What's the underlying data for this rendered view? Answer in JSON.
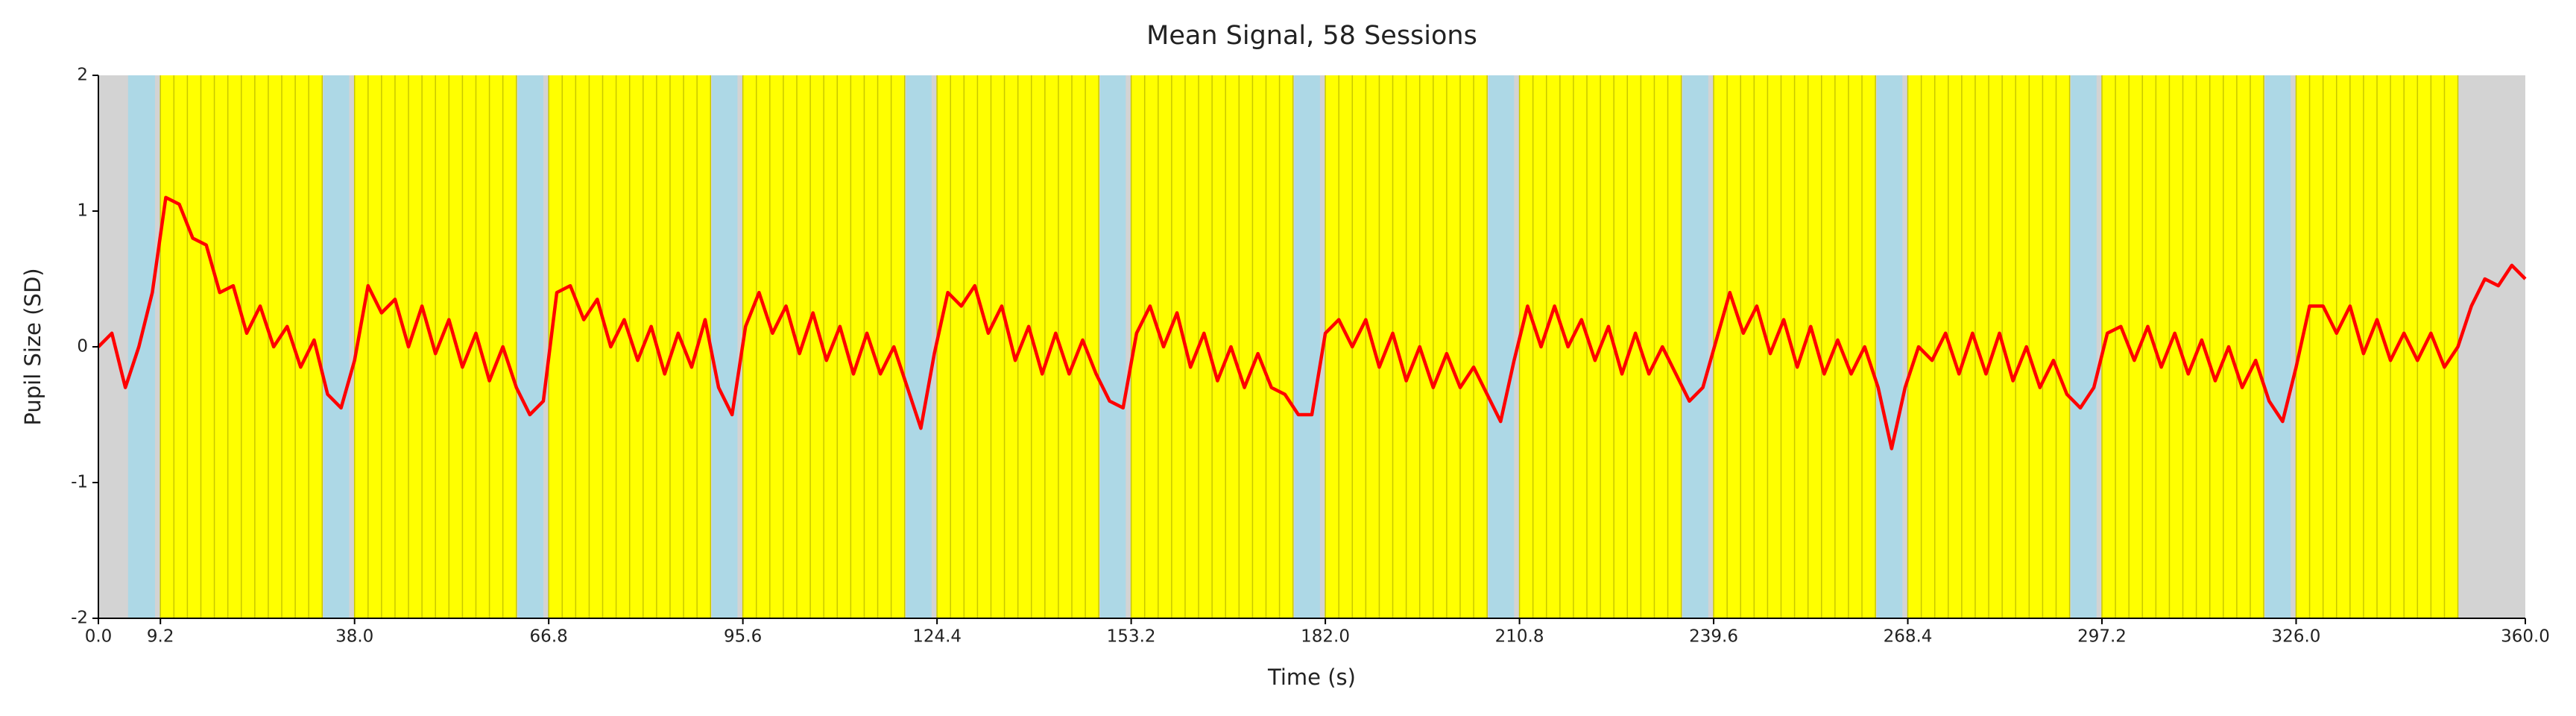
{
  "chart_data": {
    "type": "line",
    "title": "Mean Signal, 58 Sessions",
    "xlabel": "Time (s)",
    "ylabel": "Pupil Size (SD)",
    "xlim": [
      0,
      360
    ],
    "ylim": [
      -2,
      2
    ],
    "xticks": [
      {
        "value": 0,
        "label": "0.0"
      },
      {
        "value": 9.2,
        "label": "9.2"
      },
      {
        "value": 38,
        "label": "38.0"
      },
      {
        "value": 66.8,
        "label": "66.8"
      },
      {
        "value": 95.6,
        "label": "95.6"
      },
      {
        "value": 124.4,
        "label": "124.4"
      },
      {
        "value": 153.2,
        "label": "153.2"
      },
      {
        "value": 182,
        "label": "182.0"
      },
      {
        "value": 210.8,
        "label": "210.8"
      },
      {
        "value": 239.6,
        "label": "239.6"
      },
      {
        "value": 268.4,
        "label": "268.4"
      },
      {
        "value": 297.2,
        "label": "297.2"
      },
      {
        "value": 326,
        "label": "326.0"
      },
      {
        "value": 360,
        "label": "360.0"
      }
    ],
    "yticks": [
      -2,
      -1,
      0,
      1,
      2
    ],
    "background_color": "#d3d3d3",
    "regions": [
      {
        "color": "#add8e6",
        "spans": [
          [
            4.4,
            8.4
          ],
          [
            33.4,
            37.2
          ],
          [
            62.2,
            66.0
          ],
          [
            91.0,
            94.8
          ],
          [
            119.8,
            123.6
          ],
          [
            148.6,
            152.4
          ],
          [
            177.4,
            181.2
          ],
          [
            206.2,
            210.0
          ],
          [
            235.0,
            238.8
          ],
          [
            263.8,
            267.6
          ],
          [
            292.6,
            296.4
          ],
          [
            321.4,
            325.2
          ]
        ]
      },
      {
        "color": "#ffff00",
        "stripe_color": "#c8c800",
        "stripe_every": 2,
        "spans": [
          [
            9.2,
            33.2
          ],
          [
            38.0,
            62.0
          ],
          [
            66.8,
            90.8
          ],
          [
            95.6,
            119.6
          ],
          [
            124.4,
            148.4
          ],
          [
            153.2,
            177.2
          ],
          [
            182.0,
            206.0
          ],
          [
            210.8,
            234.8
          ],
          [
            239.6,
            263.6
          ],
          [
            268.4,
            292.4
          ],
          [
            297.2,
            321.2
          ],
          [
            326.0,
            350.0
          ]
        ]
      }
    ],
    "x": [
      0,
      2,
      4,
      6,
      8,
      10,
      12,
      14,
      16,
      18,
      20,
      22,
      24,
      26,
      28,
      30,
      32,
      34,
      36,
      38,
      40,
      42,
      44,
      46,
      48,
      50,
      52,
      54,
      56,
      58,
      60,
      62,
      64,
      66,
      68,
      70,
      72,
      74,
      76,
      78,
      80,
      82,
      84,
      86,
      88,
      90,
      92,
      94,
      96,
      98,
      100,
      102,
      104,
      106,
      108,
      110,
      112,
      114,
      116,
      118,
      120,
      122,
      124,
      126,
      128,
      130,
      132,
      134,
      136,
      138,
      140,
      142,
      144,
      146,
      148,
      150,
      152,
      154,
      156,
      158,
      160,
      162,
      164,
      166,
      168,
      170,
      172,
      174,
      176,
      178,
      180,
      182,
      184,
      186,
      188,
      190,
      192,
      194,
      196,
      198,
      200,
      202,
      204,
      206,
      208,
      210,
      212,
      214,
      216,
      218,
      220,
      222,
      224,
      226,
      228,
      230,
      232,
      234,
      236,
      238,
      240,
      242,
      244,
      246,
      248,
      250,
      252,
      254,
      256,
      258,
      260,
      262,
      264,
      266,
      268,
      270,
      272,
      274,
      276,
      278,
      280,
      282,
      284,
      286,
      288,
      290,
      292,
      294,
      296,
      298,
      300,
      302,
      304,
      306,
      308,
      310,
      312,
      314,
      316,
      318,
      320,
      322,
      324,
      326,
      328,
      330,
      332,
      334,
      336,
      338,
      340,
      342,
      344,
      346,
      348,
      350,
      352,
      354,
      356,
      358,
      360
    ],
    "series": [
      {
        "color": "#ff0000",
        "values": [
          0.0,
          0.1,
          -0.3,
          0.0,
          0.4,
          1.1,
          1.05,
          0.8,
          0.75,
          0.4,
          0.45,
          0.1,
          0.3,
          0.0,
          0.15,
          -0.15,
          0.05,
          -0.35,
          -0.45,
          -0.1,
          0.45,
          0.25,
          0.35,
          0.0,
          0.3,
          -0.05,
          0.2,
          -0.15,
          0.1,
          -0.25,
          0.0,
          -0.3,
          -0.5,
          -0.4,
          0.4,
          0.45,
          0.2,
          0.35,
          0.0,
          0.2,
          -0.1,
          0.15,
          -0.2,
          0.1,
          -0.15,
          0.2,
          -0.3,
          -0.5,
          0.15,
          0.4,
          0.1,
          0.3,
          -0.05,
          0.25,
          -0.1,
          0.15,
          -0.2,
          0.1,
          -0.2,
          0.0,
          -0.3,
          -0.6,
          -0.05,
          0.4,
          0.3,
          0.45,
          0.1,
          0.3,
          -0.1,
          0.15,
          -0.2,
          0.1,
          -0.2,
          0.05,
          -0.2,
          -0.4,
          -0.45,
          0.1,
          0.3,
          0.0,
          0.25,
          -0.15,
          0.1,
          -0.25,
          0.0,
          -0.3,
          -0.05,
          -0.3,
          -0.35,
          -0.5,
          -0.5,
          0.1,
          0.2,
          0.0,
          0.2,
          -0.15,
          0.1,
          -0.25,
          0.0,
          -0.3,
          -0.05,
          -0.3,
          -0.15,
          -0.35,
          -0.55,
          -0.1,
          0.3,
          0.0,
          0.3,
          0.0,
          0.2,
          -0.1,
          0.15,
          -0.2,
          0.1,
          -0.2,
          0.0,
          -0.2,
          -0.4,
          -0.3,
          0.05,
          0.4,
          0.1,
          0.3,
          -0.05,
          0.2,
          -0.15,
          0.15,
          -0.2,
          0.05,
          -0.2,
          0.0,
          -0.3,
          -0.75,
          -0.3,
          0.0,
          -0.1,
          0.1,
          -0.2,
          0.1,
          -0.2,
          0.1,
          -0.25,
          0.0,
          -0.3,
          -0.1,
          -0.35,
          -0.45,
          -0.3,
          0.1,
          0.15,
          -0.1,
          0.15,
          -0.15,
          0.1,
          -0.2,
          0.05,
          -0.25,
          0.0,
          -0.3,
          -0.1,
          -0.4,
          -0.55,
          -0.15,
          0.3,
          0.3,
          0.1,
          0.3,
          -0.05,
          0.2,
          -0.1,
          0.1,
          -0.1,
          0.1,
          -0.15,
          0.0,
          0.3,
          0.5,
          0.45,
          0.6,
          0.5
        ]
      }
    ]
  }
}
